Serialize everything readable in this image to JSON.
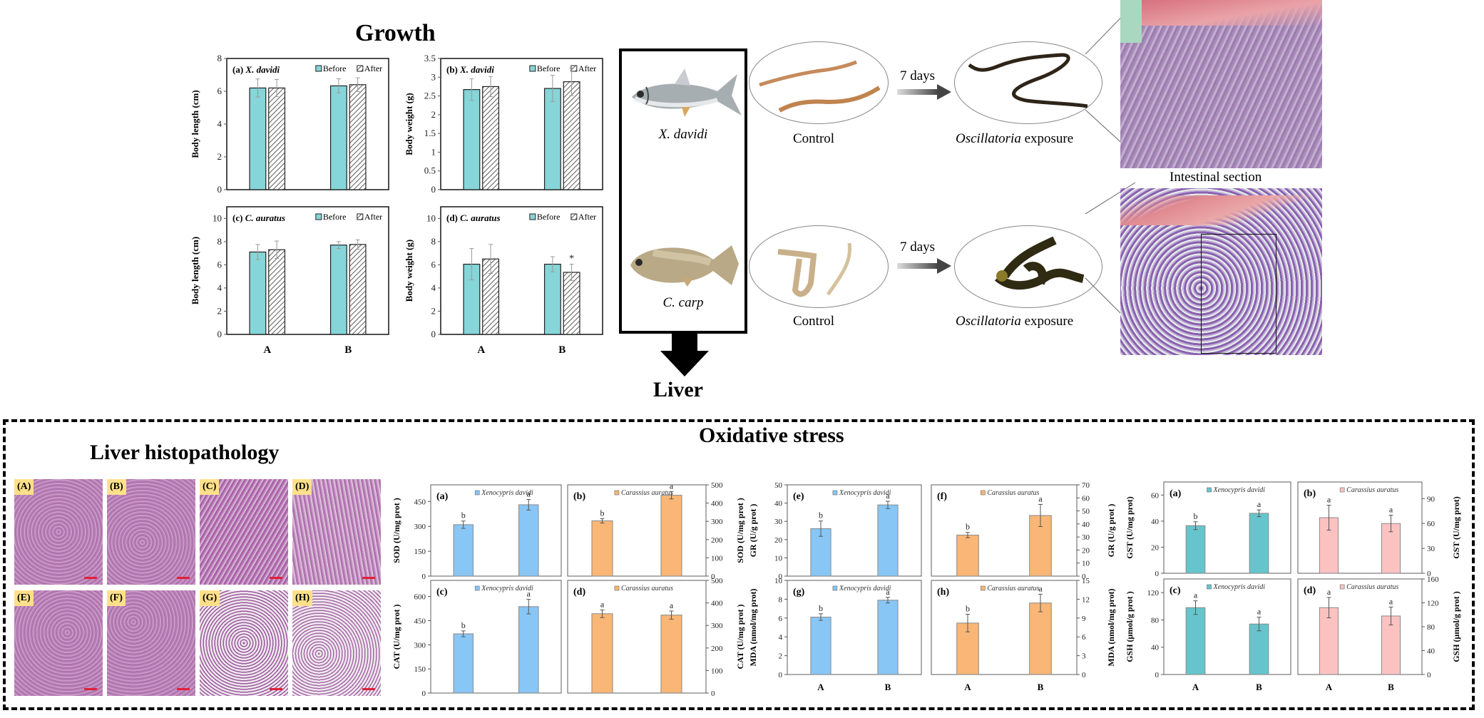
{
  "titles": {
    "growth": "Growth",
    "liver": "Liver",
    "oxidative_stress": "Oxidative stress",
    "liver_histopathology": "Liver histopathology",
    "intestinal_section": "Intestinal section"
  },
  "fish": [
    {
      "name": "X. davidi"
    },
    {
      "name": "C. carp"
    }
  ],
  "gut_panels": [
    {
      "control_label": "Control",
      "arrow_label": "7 days",
      "exposure_label_italic": "Oscillatoria",
      "exposure_label_rest": " exposure"
    },
    {
      "control_label": "Control",
      "arrow_label": "7 days",
      "exposure_label_italic": "Oscillatoria",
      "exposure_label_rest": " exposure"
    }
  ],
  "histology_panels": [
    {
      "label": "(A)"
    },
    {
      "label": "(B)"
    },
    {
      "label": "(C)"
    },
    {
      "label": "(D)"
    },
    {
      "label": "(E)"
    },
    {
      "label": "(F)"
    },
    {
      "label": "(G)"
    },
    {
      "label": "(H)"
    }
  ],
  "colors": {
    "growth_before": "#86d5d8",
    "xenocypris": "#88c6f5",
    "carassius": "#f9b676",
    "gst_xeno": "#66c5cc",
    "gst_carassius": "#fcc2c2",
    "histo_pink": "#b87bb4",
    "histo_label_bg": "#ffe08a"
  },
  "chart_data": [
    {
      "id": "growth-a",
      "type": "bar",
      "panel_label": "(a)",
      "species": "X. davidi",
      "ylabel": "Body length (cm)",
      "ylim": [
        0,
        8
      ],
      "yticks": [
        0,
        2,
        4,
        6,
        8
      ],
      "categories": [
        "A",
        "B"
      ],
      "show_xlabels": false,
      "axis_side": "left",
      "legend": [
        "Before",
        "After"
      ],
      "series": [
        {
          "name": "Before",
          "values": [
            6.2,
            6.33
          ],
          "errors": [
            0.55,
            0.43
          ]
        },
        {
          "name": "After",
          "values": [
            6.2,
            6.4
          ],
          "errors": [
            0.52,
            0.42
          ]
        }
      ]
    },
    {
      "id": "growth-b",
      "type": "bar",
      "panel_label": "(b)",
      "species": "X. davidi",
      "ylabel": "Body weight (g)",
      "ylim": [
        0,
        3.5
      ],
      "yticks": [
        0,
        0.5,
        1,
        1.5,
        2,
        2.5,
        3,
        3.5
      ],
      "categories": [
        "A",
        "B"
      ],
      "show_xlabels": false,
      "axis_side": "left",
      "legend": [
        "Before",
        "After"
      ],
      "series": [
        {
          "name": "Before",
          "values": [
            2.67,
            2.7
          ],
          "errors": [
            0.29,
            0.35
          ]
        },
        {
          "name": "After",
          "values": [
            2.75,
            2.88
          ],
          "errors": [
            0.27,
            0.37
          ]
        }
      ]
    },
    {
      "id": "growth-c",
      "type": "bar",
      "panel_label": "(c)",
      "species": "C. auratus",
      "ylabel": "Body length (cm)",
      "ylim": [
        0,
        11
      ],
      "yticks": [
        0,
        2,
        4,
        6,
        8,
        10
      ],
      "categories": [
        "A",
        "B"
      ],
      "show_xlabels": true,
      "axis_side": "left",
      "legend": [
        "Before",
        "After"
      ],
      "series": [
        {
          "name": "Before",
          "values": [
            7.1,
            7.7
          ],
          "errors": [
            0.65,
            0.3
          ]
        },
        {
          "name": "After",
          "values": [
            7.3,
            7.75
          ],
          "errors": [
            0.75,
            0.4
          ]
        }
      ]
    },
    {
      "id": "growth-d",
      "type": "bar",
      "panel_label": "(d)",
      "species": "C. auratus",
      "ylabel": "Body weight (g)",
      "ylim": [
        0,
        11
      ],
      "yticks": [
        0,
        2,
        4,
        6,
        8,
        10
      ],
      "categories": [
        "A",
        "B"
      ],
      "show_xlabels": true,
      "axis_side": "left",
      "legend": [
        "Before",
        "After"
      ],
      "series": [
        {
          "name": "Before",
          "values": [
            6.05,
            6.05
          ],
          "errors": [
            1.35,
            0.65
          ]
        },
        {
          "name": "After",
          "values": [
            6.5,
            5.35
          ],
          "errors": [
            1.25,
            0.7
          ],
          "annotations": [
            "",
            "*"
          ]
        }
      ]
    },
    {
      "id": "sod-a",
      "type": "bar",
      "panel_label": "(a)",
      "legend": [
        "Xenocypris davidi"
      ],
      "color_key": "xenocypris",
      "ylabel": "SOD (U/mg prot )",
      "ylim": [
        0,
        550
      ],
      "yticks": [
        0,
        150,
        300,
        450
      ],
      "axis_side": "left",
      "categories": [
        "A",
        "B"
      ],
      "show_xlabels": false,
      "series": [
        {
          "name": "Xenocypris davidi",
          "values": [
            310,
            430
          ],
          "errors": [
            22,
            32
          ],
          "letters": [
            "b",
            "a"
          ]
        }
      ]
    },
    {
      "id": "sod-b",
      "type": "bar",
      "panel_label": "(b)",
      "legend": [
        "Carassius auratus"
      ],
      "color_key": "carassius",
      "ylabel": "SOD (U/mg prot )",
      "ylim": [
        0,
        500
      ],
      "yticks": [
        0,
        100,
        200,
        300,
        400,
        500
      ],
      "axis_side": "right",
      "categories": [
        "A",
        "B"
      ],
      "show_xlabels": false,
      "series": [
        {
          "name": "Carassius auratus",
          "values": [
            303,
            443
          ],
          "errors": [
            12,
            20
          ],
          "letters": [
            "b",
            "a"
          ]
        }
      ]
    },
    {
      "id": "cat-c",
      "type": "bar",
      "panel_label": "(c)",
      "legend": [
        "Xenocypris davidi"
      ],
      "color_key": "xenocypris",
      "ylabel": "CAT (U/mg prot )",
      "ylim": [
        0,
        700
      ],
      "yticks": [
        0,
        150,
        300,
        450,
        600
      ],
      "axis_side": "left",
      "categories": [
        "A",
        "B"
      ],
      "show_xlabels": false,
      "series": [
        {
          "name": "Xenocypris davidi",
          "values": [
            368,
            537
          ],
          "errors": [
            18,
            45
          ],
          "letters": [
            "b",
            "a"
          ]
        }
      ]
    },
    {
      "id": "cat-d",
      "type": "bar",
      "panel_label": "(d)",
      "legend": [
        "Carassius auratus"
      ],
      "color_key": "carassius",
      "ylabel": "CAT (U/mg prot )",
      "ylim": [
        0,
        500
      ],
      "yticks": [
        0,
        100,
        200,
        300,
        400,
        500
      ],
      "axis_side": "right",
      "categories": [
        "A",
        "B"
      ],
      "show_xlabels": false,
      "series": [
        {
          "name": "Carassius auratus",
          "values": [
            352,
            346
          ],
          "errors": [
            17,
            18
          ],
          "letters": [
            "a",
            "a"
          ]
        }
      ]
    },
    {
      "id": "gr-e",
      "type": "bar",
      "panel_label": "(e)",
      "legend": [
        "Xenocypris davidi"
      ],
      "color_key": "xenocypris",
      "ylabel": "GR (U/g prot )",
      "ylim": [
        0,
        50
      ],
      "yticks": [
        0,
        10,
        20,
        30,
        40,
        50
      ],
      "axis_side": "left",
      "categories": [
        "A",
        "B"
      ],
      "show_xlabels": false,
      "series": [
        {
          "name": "Xenocypris davidi",
          "values": [
            26,
            39
          ],
          "errors": [
            4.2,
            2.0
          ],
          "letters": [
            "b",
            "a"
          ]
        }
      ]
    },
    {
      "id": "gr-f",
      "type": "bar",
      "panel_label": "(f)",
      "legend": [
        "Carassius auratus"
      ],
      "color_key": "carassius",
      "ylabel": "GR (U/g prot )",
      "ylim": [
        0,
        70
      ],
      "yticks": [
        0,
        10,
        20,
        30,
        40,
        50,
        60,
        70
      ],
      "axis_side": "right",
      "categories": [
        "A",
        "B"
      ],
      "show_xlabels": false,
      "series": [
        {
          "name": "Carassius auratus",
          "values": [
            31.5,
            46.5
          ],
          "errors": [
            2.0,
            8.5
          ],
          "letters": [
            "b",
            "a"
          ]
        }
      ]
    },
    {
      "id": "mda-g",
      "type": "bar",
      "panel_label": "(g)",
      "legend": [
        "Xenocypris davidi"
      ],
      "color_key": "xenocypris",
      "ylabel": "MDA (nmol/mg prot)",
      "ylim": [
        0,
        10
      ],
      "yticks": [
        0,
        2,
        4,
        6,
        8,
        10
      ],
      "axis_side": "left",
      "categories": [
        "A",
        "B"
      ],
      "show_xlabels": true,
      "series": [
        {
          "name": "Xenocypris davidi",
          "values": [
            6.1,
            7.9
          ],
          "errors": [
            0.35,
            0.3
          ],
          "letters": [
            "b",
            "a"
          ]
        }
      ]
    },
    {
      "id": "mda-h",
      "type": "bar",
      "panel_label": "(h)",
      "legend": [
        "Carassius auratus"
      ],
      "color_key": "carassius",
      "ylabel": "MDA (nmol/mg prot)",
      "ylim": [
        0,
        15
      ],
      "yticks": [
        0,
        3,
        6,
        9,
        12,
        15
      ],
      "axis_side": "right",
      "categories": [
        "A",
        "B"
      ],
      "show_xlabels": true,
      "series": [
        {
          "name": "Carassius auratus",
          "values": [
            8.2,
            11.4
          ],
          "errors": [
            1.4,
            1.4
          ],
          "letters": [
            "b",
            "a"
          ]
        }
      ]
    },
    {
      "id": "gst-a",
      "type": "bar",
      "panel_label": "(a)",
      "legend": [
        "Xenocypris davidi"
      ],
      "color_key": "gst_xeno",
      "ylabel": "GST (U/mg prot)",
      "ylim": [
        0,
        70
      ],
      "yticks": [
        0,
        20,
        40,
        60
      ],
      "axis_side": "left",
      "categories": [
        "A",
        "B"
      ],
      "show_xlabels": false,
      "series": [
        {
          "name": "Xenocypris davidi",
          "values": [
            36.5,
            46
          ],
          "errors": [
            3,
            2.6
          ],
          "letters": [
            "b",
            "a"
          ]
        }
      ]
    },
    {
      "id": "gst-b",
      "type": "bar",
      "panel_label": "(b)",
      "legend": [
        "Carassius auratus"
      ],
      "color_key": "gst_carassius",
      "ylabel": "GST (U/mg prot)",
      "ylim": [
        0,
        110
      ],
      "yticks": [
        0,
        30,
        60,
        90
      ],
      "axis_side": "right",
      "categories": [
        "A",
        "B"
      ],
      "show_xlabels": false,
      "series": [
        {
          "name": "Carassius auratus",
          "values": [
            67,
            60
          ],
          "errors": [
            15,
            10
          ],
          "letters": [
            "a",
            "a"
          ]
        }
      ]
    },
    {
      "id": "gsh-c",
      "type": "bar",
      "panel_label": "(c)",
      "legend": [
        "Xenocypris davidi"
      ],
      "color_key": "gst_xeno",
      "ylabel": "GSH (μmol/g prot )",
      "ylim": [
        0,
        140
      ],
      "yticks": [
        0,
        40,
        80,
        120
      ],
      "axis_side": "left",
      "categories": [
        "A",
        "B"
      ],
      "show_xlabels": true,
      "series": [
        {
          "name": "Xenocypris davidi",
          "values": [
            98,
            74
          ],
          "errors": [
            10,
            10
          ],
          "letters": [
            "a",
            "a"
          ]
        }
      ]
    },
    {
      "id": "gsh-d",
      "type": "bar",
      "panel_label": "(d)",
      "legend": [
        "Carassius auratus"
      ],
      "color_key": "gst_carassius",
      "ylabel": "GSH (μmol/g prot )",
      "ylim": [
        0,
        160
      ],
      "yticks": [
        0,
        40,
        80,
        120,
        160
      ],
      "axis_side": "right",
      "categories": [
        "A",
        "B"
      ],
      "show_xlabels": true,
      "series": [
        {
          "name": "Carassius auratus",
          "values": [
            112,
            98
          ],
          "errors": [
            17,
            15
          ],
          "letters": [
            "a",
            "a"
          ]
        }
      ]
    }
  ]
}
